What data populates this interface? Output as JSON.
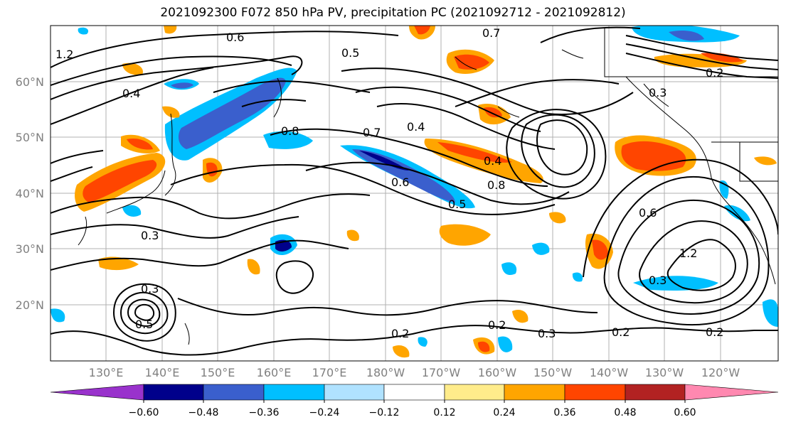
{
  "title": "2021092300 F072 850 hPa PV, precipitation PC (2021092712 - 2021092812)",
  "map": {
    "lat_labels": [
      "60°N",
      "50°N",
      "40°N",
      "30°N",
      "20°N"
    ],
    "lon_labels": [
      "130°E",
      "140°E",
      "150°E",
      "160°E",
      "170°E",
      "180°W",
      "170°W",
      "160°W",
      "150°W",
      "140°W",
      "130°W",
      "120°W"
    ],
    "contour_labels": [
      "0.6",
      "0.7",
      "0.5",
      "0.4",
      "1.2",
      "0.8",
      "0.7",
      "0.4",
      "0.6",
      "0.5",
      "0.8",
      "0.4",
      "0.3",
      "0.3",
      "0.3",
      "0.5",
      "0.2",
      "0.2",
      "0.3",
      "0.2",
      "0.2",
      "1.2",
      "0.3",
      "0.6",
      "0.2"
    ]
  },
  "colorbar": {
    "ticks": [
      "−0.60",
      "−0.48",
      "−0.36",
      "−0.24",
      "−0.12",
      "0.12",
      "0.24",
      "0.36",
      "0.48",
      "0.60"
    ],
    "colors": [
      "#9932cc",
      "#00008b",
      "#3a5fcd",
      "#00bfff",
      "#b0e2ff",
      "#ffffff",
      "#ffec8b",
      "#ffa500",
      "#ff4500",
      "#b22222",
      "#ff88b0"
    ]
  }
}
